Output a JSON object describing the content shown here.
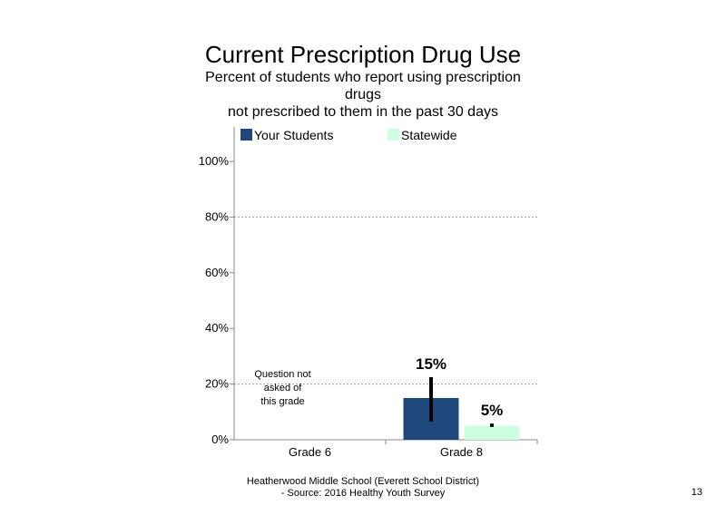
{
  "header": {
    "title": "Current Prescription Drug Use",
    "subtitle_lines": [
      "Percent of students  who report using prescription",
      "drugs",
      "not prescribed to them in the past 30 days"
    ]
  },
  "chart_data": {
    "type": "bar",
    "categories": [
      "Grade 6",
      "Grade 8"
    ],
    "series": [
      {
        "name": "Your Students",
        "color": "#1f497d",
        "values": [
          null,
          15
        ],
        "labels": [
          "",
          "15%"
        ],
        "error_low": [
          null,
          6.5
        ],
        "error_high": [
          null,
          22.5
        ]
      },
      {
        "name": "Statewide",
        "color": "#ccffe0",
        "values": [
          null,
          5
        ],
        "labels": [
          "",
          "5%"
        ],
        "error_low": [
          null,
          4.6
        ],
        "error_high": [
          null,
          5.8
        ]
      }
    ],
    "ylim": [
      0,
      100
    ],
    "yticks": [
      0,
      20,
      40,
      60,
      80,
      100
    ],
    "ytick_labels": [
      "0%",
      "20%",
      "40%",
      "60%",
      "80%",
      "100%"
    ],
    "gridlines": [
      20,
      80
    ],
    "grid_style": "dotted",
    "legend_position": "top",
    "annotations": [
      {
        "category": "Grade 6",
        "lines": [
          "Question not",
          "asked of",
          "this grade"
        ]
      }
    ]
  },
  "footer": {
    "line1": "Heatherwood Middle School (Everett School District)",
    "line2": "- Source: 2016 Healthy  Youth Survey",
    "page_number": "13"
  }
}
